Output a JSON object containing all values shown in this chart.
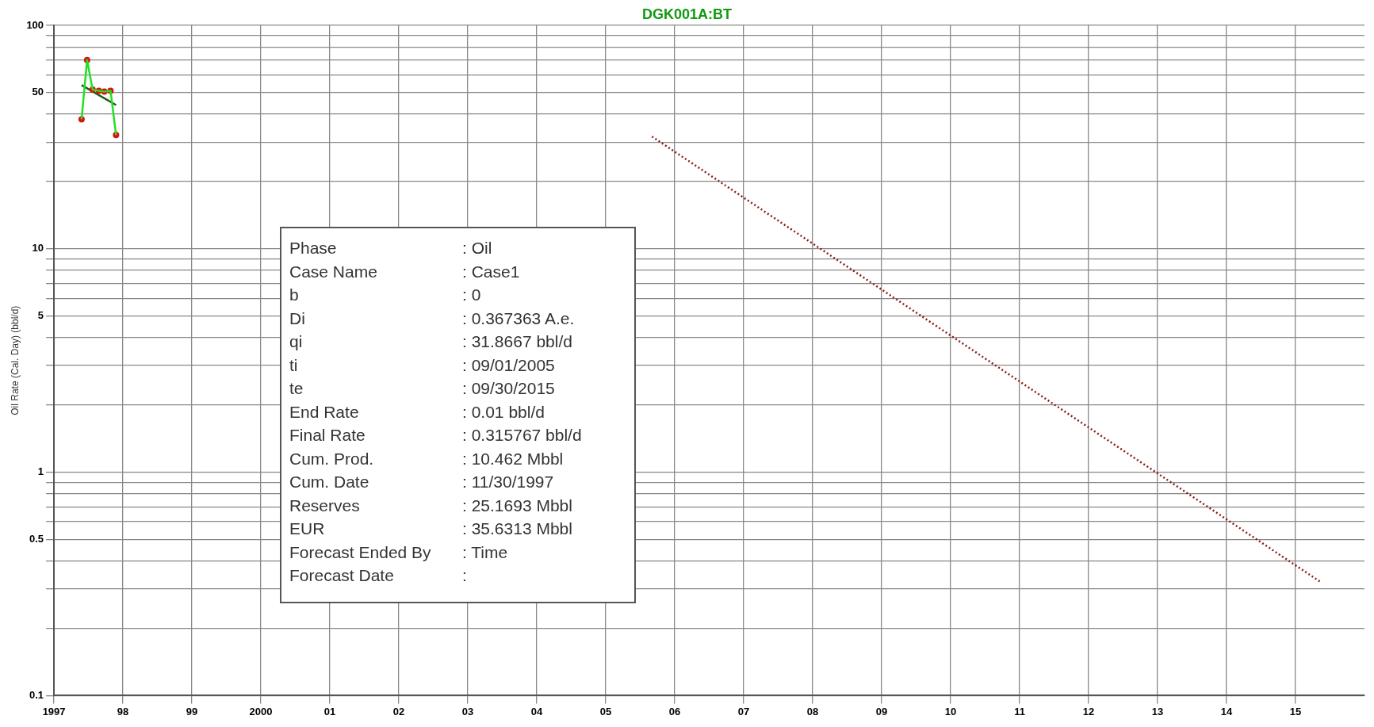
{
  "chart_data": {
    "type": "line",
    "title": "DGK001A:BT",
    "ylabel": "Oil Rate (Cal. Day) (bbl/d)",
    "log": "y",
    "grid": true,
    "legend": false,
    "xlim": [
      1997,
      2016
    ],
    "xticks": [
      1997,
      {
        "value": 1998,
        "label": "98"
      },
      {
        "value": 1999,
        "label": "99"
      },
      2000,
      {
        "value": 2001,
        "label": "01"
      },
      {
        "value": 2002,
        "label": "02"
      },
      {
        "value": 2003,
        "label": "03"
      },
      {
        "value": 2004,
        "label": "04"
      },
      {
        "value": 2005,
        "label": "05"
      },
      {
        "value": 2006,
        "label": "06"
      },
      {
        "value": 2007,
        "label": "07"
      },
      {
        "value": 2008,
        "label": "08"
      },
      {
        "value": 2009,
        "label": "09"
      },
      {
        "value": 2010,
        "label": "10"
      },
      {
        "value": 2011,
        "label": "11"
      },
      {
        "value": 2012,
        "label": "12"
      },
      {
        "value": 2013,
        "label": "13"
      },
      {
        "value": 2014,
        "label": "14"
      },
      {
        "value": 2015,
        "label": "15"
      }
    ],
    "ylim": [
      0.1,
      100
    ],
    "yticks": [
      0.1,
      {
        "value": 0.2,
        "label": null
      },
      {
        "value": 0.3,
        "label": null
      },
      {
        "value": 0.4,
        "label": null
      },
      0.5,
      {
        "value": 0.6,
        "label": null
      },
      {
        "value": 0.7,
        "label": null
      },
      {
        "value": 0.8,
        "label": null
      },
      {
        "value": 0.9,
        "label": null
      },
      1,
      {
        "value": 2,
        "label": null
      },
      {
        "value": 3,
        "label": null
      },
      {
        "value": 4,
        "label": null
      },
      5,
      {
        "value": 6,
        "label": null
      },
      {
        "value": 7,
        "label": null
      },
      {
        "value": 8,
        "label": null
      },
      {
        "value": 9,
        "label": null
      },
      10,
      {
        "value": 20,
        "label": null
      },
      {
        "value": 30,
        "label": null
      },
      {
        "value": 40,
        "label": null
      },
      50,
      {
        "value": 60,
        "label": null
      },
      {
        "value": 70,
        "label": null
      },
      {
        "value": 80,
        "label": null
      },
      {
        "value": 90,
        "label": null
      },
      100
    ],
    "series": [
      {
        "type": "line",
        "color": "#22e022",
        "marker": "none",
        "x": [
          1997.4,
          1997.48,
          1997.56,
          1997.65,
          1997.73,
          1997.82,
          1997.9
        ],
        "values": [
          38,
          70,
          51.6,
          51,
          50.5,
          51,
          32.3
        ]
      },
      {
        "type": "scatter",
        "color": "#dd1111",
        "marker": "circle",
        "x": [
          1997.4,
          1997.48,
          1997.56,
          1997.65,
          1997.73,
          1997.82,
          1997.9
        ],
        "values": [
          38,
          70,
          51.6,
          51,
          50.5,
          51,
          32.3
        ]
      },
      {
        "type": "line",
        "color": "#1a5a1a",
        "marker": "none",
        "x": [
          1997.4,
          1997.9
        ],
        "values": [
          54,
          44
        ]
      },
      {
        "type": "line",
        "color": "#8b1a1a",
        "marker": "none",
        "line_style": "dotted",
        "x": [
          2005.67,
          2015.38
        ],
        "values": [
          31.8,
          0.32
        ]
      }
    ],
    "annotations": [
      "Phase",
      ": Oil",
      "Case Name",
      ": Case1",
      "b",
      ": 0",
      "Di",
      ": 0.367363 A.e.",
      "qi",
      ": 31.8667 bbl/d",
      "ti",
      ": 09/01/2005",
      "te",
      ": 09/30/2015",
      "End Rate",
      ": 0.01 bbl/d",
      "Final Rate",
      ": 0.315767 bbl/d",
      "Cum. Prod.",
      ": 10.462 Mbbl",
      "Cum. Date",
      ": 11/30/1997",
      "Reserves",
      ": 25.1693 Mbbl",
      "EUR",
      ": 35.6313 Mbbl",
      "Forecast Ended By",
      ": Time",
      "Forecast Date",
      ":"
    ]
  }
}
